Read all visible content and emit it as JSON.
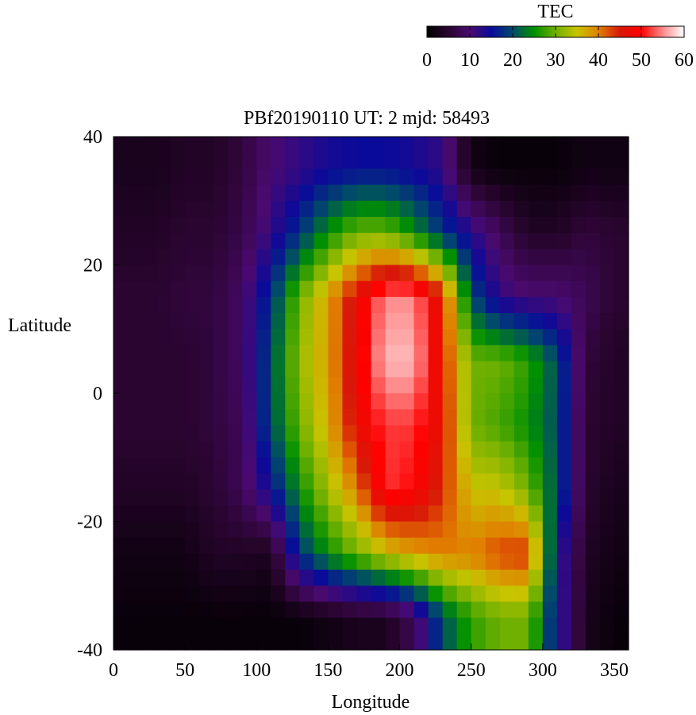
{
  "chart_data": {
    "type": "heatmap",
    "title": "PBf20190110  UT: 2  mjd: 58493",
    "xlabel": "Longitude",
    "ylabel": "Latitude",
    "xlim": [
      0,
      360
    ],
    "ylim": [
      -40,
      40
    ],
    "xticks": [
      0,
      50,
      100,
      150,
      200,
      250,
      300,
      350
    ],
    "yticks": [
      -40,
      -20,
      0,
      20,
      40
    ],
    "colorbar": {
      "label": "TEC",
      "range": [
        0,
        60
      ],
      "ticks": [
        0,
        10,
        20,
        30,
        40,
        50,
        60
      ],
      "colormap": [
        {
          "v": 0,
          "color": "#000000"
        },
        {
          "v": 5,
          "color": "#2a0530"
        },
        {
          "v": 10,
          "color": "#4a0a70"
        },
        {
          "v": 15,
          "color": "#0a0a9a"
        },
        {
          "v": 20,
          "color": "#004a6a"
        },
        {
          "v": 25,
          "color": "#009000"
        },
        {
          "v": 30,
          "color": "#70b000"
        },
        {
          "v": 35,
          "color": "#c8c400"
        },
        {
          "v": 40,
          "color": "#e08000"
        },
        {
          "v": 45,
          "color": "#d81808"
        },
        {
          "v": 50,
          "color": "#ff0000"
        },
        {
          "v": 55,
          "color": "#ff8a8a"
        },
        {
          "v": 60,
          "color": "#ffffff"
        }
      ]
    },
    "grid_lon_centers": [
      10,
      30,
      50,
      70,
      90,
      110,
      130,
      150,
      170,
      190,
      210,
      230,
      250,
      270,
      290,
      310,
      330,
      350
    ],
    "grid_lat_centers": [
      35,
      25,
      15,
      5,
      -5,
      -15,
      -25,
      -35
    ],
    "values": [
      [
        3,
        3,
        4,
        4,
        6,
        10,
        12,
        14,
        15,
        15,
        14,
        12,
        2,
        1,
        1,
        1,
        2,
        2
      ],
      [
        4,
        4,
        5,
        5,
        7,
        12,
        18,
        25,
        30,
        30,
        25,
        18,
        13,
        8,
        4,
        4,
        6,
        5
      ],
      [
        5,
        5,
        6,
        6,
        9,
        18,
        30,
        38,
        47,
        55,
        55,
        45,
        20,
        12,
        10,
        10,
        8,
        5
      ],
      [
        5,
        5,
        5,
        6,
        9,
        20,
        32,
        38,
        48,
        57,
        57,
        45,
        30,
        30,
        27,
        20,
        6,
        4
      ],
      [
        5,
        5,
        5,
        6,
        8,
        20,
        30,
        37,
        47,
        52,
        52,
        46,
        30,
        28,
        25,
        20,
        5,
        4
      ],
      [
        4,
        4,
        4,
        5,
        8,
        15,
        25,
        33,
        40,
        52,
        50,
        44,
        35,
        35,
        30,
        20,
        5,
        3
      ],
      [
        2,
        2,
        2,
        4,
        4,
        3,
        18,
        25,
        30,
        35,
        38,
        40,
        40,
        43,
        44,
        15,
        4,
        2
      ],
      [
        1,
        1,
        1,
        1,
        1,
        1,
        1,
        2,
        3,
        3,
        8,
        20,
        27,
        30,
        30,
        15,
        3,
        1
      ]
    ]
  }
}
